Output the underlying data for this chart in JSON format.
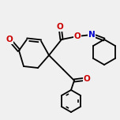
{
  "bg_color": "#f0f0f0",
  "line_color": "#000000",
  "bond_width": 1.3,
  "atom_colors": {
    "O": "#cc0000",
    "N": "#0000cc",
    "C": "#000000"
  },
  "font_size": 7.5
}
